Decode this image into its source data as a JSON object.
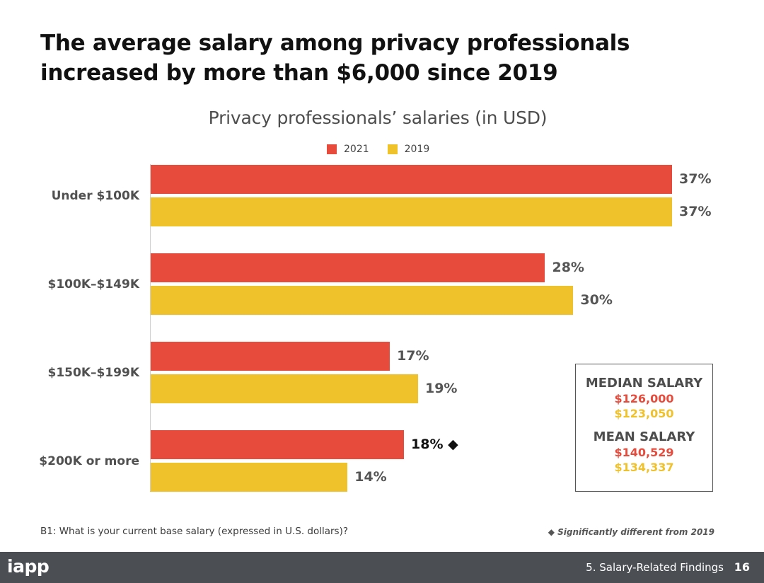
{
  "headline": "The average salary among privacy professionals increased by more than $6,000 since 2019",
  "colors": {
    "y2021": "#e64b3c",
    "y2019": "#efc12b"
  },
  "chart_data": {
    "type": "bar",
    "orientation": "horizontal",
    "title": "Privacy professionals’ salaries (in USD)",
    "categories": [
      "Under $100K",
      "$100K–$149K",
      "$150K–$199K",
      "$200K or more"
    ],
    "series": [
      {
        "name": "2021",
        "values": [
          37,
          28,
          17,
          18
        ],
        "labels": [
          "37%",
          "28%",
          "17%",
          "18%"
        ]
      },
      {
        "name": "2019",
        "values": [
          37,
          30,
          19,
          14
        ],
        "labels": [
          "37%",
          "30%",
          "19%",
          "14%"
        ]
      }
    ],
    "significant_marker": "◆",
    "significant": [
      [
        false,
        false,
        false,
        true
      ],
      [
        false,
        false,
        false,
        false
      ]
    ],
    "xlim": [
      0,
      37
    ],
    "legend_position": "top"
  },
  "summary": {
    "median_heading": "MEDIAN SALARY",
    "median_2021": "$126,000",
    "median_2019": "$123,050",
    "mean_heading": "MEAN SALARY",
    "mean_2021": "$140,529",
    "mean_2019": "$134,337"
  },
  "footnote": "B1: What is your current base salary (expressed in U.S. dollars)?",
  "significance_note": "◆  Significantly different from 2019",
  "footer": {
    "logo": "iapp",
    "section": "5. Salary-Related Findings",
    "page": "16"
  }
}
